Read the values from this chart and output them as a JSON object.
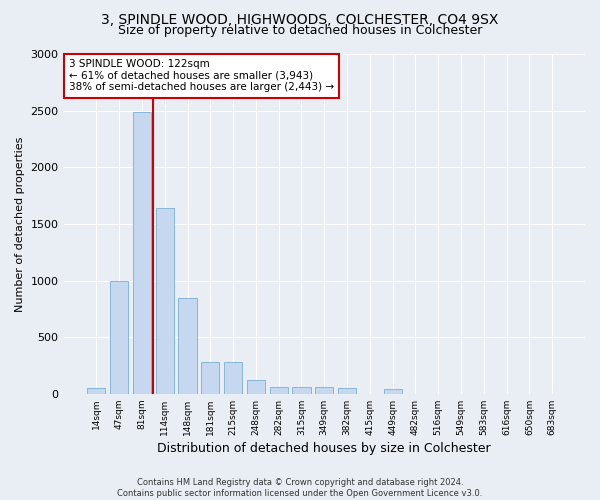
{
  "title_line1": "3, SPINDLE WOOD, HIGHWOODS, COLCHESTER, CO4 9SX",
  "title_line2": "Size of property relative to detached houses in Colchester",
  "xlabel": "Distribution of detached houses by size in Colchester",
  "ylabel": "Number of detached properties",
  "categories": [
    "14sqm",
    "47sqm",
    "81sqm",
    "114sqm",
    "148sqm",
    "181sqm",
    "215sqm",
    "248sqm",
    "282sqm",
    "315sqm",
    "349sqm",
    "382sqm",
    "415sqm",
    "449sqm",
    "482sqm",
    "516sqm",
    "549sqm",
    "583sqm",
    "616sqm",
    "650sqm",
    "683sqm"
  ],
  "values": [
    50,
    1000,
    2490,
    1640,
    850,
    278,
    278,
    120,
    60,
    58,
    58,
    50,
    0,
    40,
    0,
    0,
    0,
    0,
    0,
    0,
    0
  ],
  "bar_color": "#c5d8f0",
  "bar_edge_color": "#7aafd4",
  "vline_color": "#cc0000",
  "annotation_text": "3 SPINDLE WOOD: 122sqm\n← 61% of detached houses are smaller (3,943)\n38% of semi-detached houses are larger (2,443) →",
  "annotation_box_color": "white",
  "annotation_box_edge": "#cc0000",
  "ylim": [
    0,
    3000
  ],
  "yticks": [
    0,
    500,
    1000,
    1500,
    2000,
    2500,
    3000
  ],
  "background_color": "#e8eef4",
  "footer_line1": "Contains HM Land Registry data © Crown copyright and database right 2024.",
  "footer_line2": "Contains public sector information licensed under the Open Government Licence v3.0.",
  "title_fontsize": 10,
  "subtitle_fontsize": 9,
  "xlabel_fontsize": 9,
  "ylabel_fontsize": 8
}
